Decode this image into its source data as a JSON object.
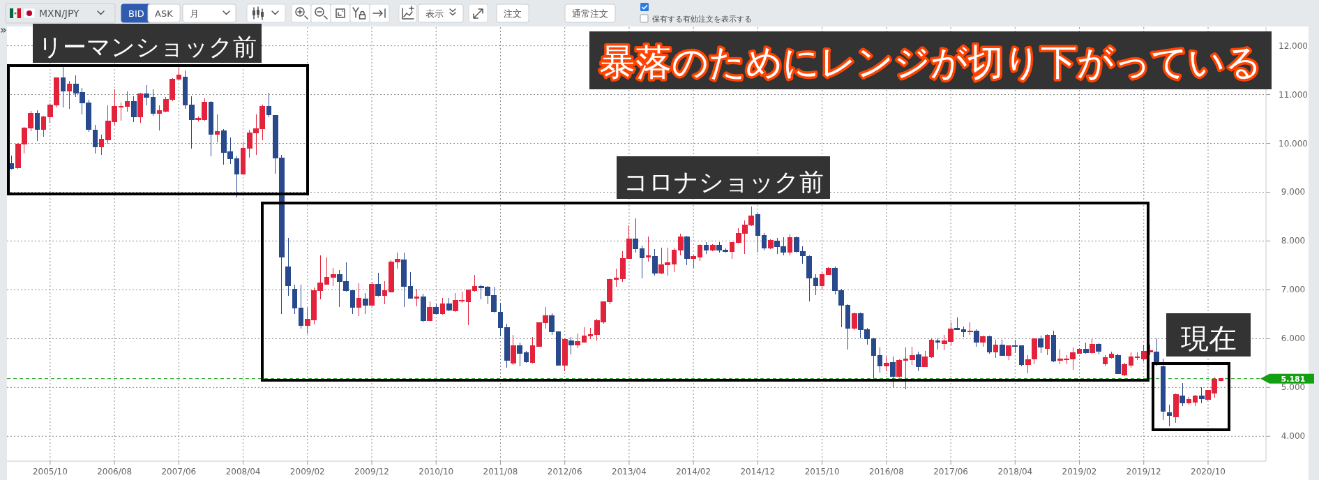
{
  "chart_data": {
    "type": "candlestick",
    "title": "暴落のためにレンジが切り下がっている",
    "subtitle": "MXN/JPY",
    "x": [
      "2005-04",
      "2005-05",
      "2005-06",
      "2005-07",
      "2005-08",
      "2005-09",
      "2005-10",
      "2005-11",
      "2005-12",
      "2006-01",
      "2006-02",
      "2006-03",
      "2006-04",
      "2006-05",
      "2006-06",
      "2006-07",
      "2006-08",
      "2006-09",
      "2006-10",
      "2006-11",
      "2006-12",
      "2007-01",
      "2007-02",
      "2007-03",
      "2007-04",
      "2007-05",
      "2007-06",
      "2007-07",
      "2007-08",
      "2007-09",
      "2007-10",
      "2007-11",
      "2007-12",
      "2008-01",
      "2008-02",
      "2008-03",
      "2008-04",
      "2008-05",
      "2008-06",
      "2008-07",
      "2008-08",
      "2008-09",
      "2008-10",
      "2008-11",
      "2008-12",
      "2009-01",
      "2009-02",
      "2009-03",
      "2009-04",
      "2009-05",
      "2009-06",
      "2009-07",
      "2009-08",
      "2009-09",
      "2009-10",
      "2009-11",
      "2009-12",
      "2010-01",
      "2010-02",
      "2010-03",
      "2010-04",
      "2010-05",
      "2010-06",
      "2010-07",
      "2010-08",
      "2010-09",
      "2010-10",
      "2010-11",
      "2010-12",
      "2011-01",
      "2011-02",
      "2011-03",
      "2011-04",
      "2011-05",
      "2011-06",
      "2011-07",
      "2011-08",
      "2011-09",
      "2011-10",
      "2011-11",
      "2011-12",
      "2012-01",
      "2012-02",
      "2012-03",
      "2012-04",
      "2012-05",
      "2012-06",
      "2012-07",
      "2012-08",
      "2012-09",
      "2012-10",
      "2012-11",
      "2012-12",
      "2013-01",
      "2013-02",
      "2013-03",
      "2013-04",
      "2013-05",
      "2013-06",
      "2013-07",
      "2013-08",
      "2013-09",
      "2013-10",
      "2013-11",
      "2013-12",
      "2014-01",
      "2014-02",
      "2014-03",
      "2014-04",
      "2014-05",
      "2014-06",
      "2014-07",
      "2014-08",
      "2014-09",
      "2014-10",
      "2014-11",
      "2014-12",
      "2015-01",
      "2015-02",
      "2015-03",
      "2015-04",
      "2015-05",
      "2015-06",
      "2015-07",
      "2015-08",
      "2015-09",
      "2015-10",
      "2015-11",
      "2015-12",
      "2016-01",
      "2016-02",
      "2016-03",
      "2016-04",
      "2016-05",
      "2016-06",
      "2016-07",
      "2016-08",
      "2016-09",
      "2016-10",
      "2016-11",
      "2016-12",
      "2017-01",
      "2017-02",
      "2017-03",
      "2017-04",
      "2017-05",
      "2017-06",
      "2017-07",
      "2017-08",
      "2017-09",
      "2017-10",
      "2017-11",
      "2017-12",
      "2018-01",
      "2018-02",
      "2018-03",
      "2018-04",
      "2018-05",
      "2018-06",
      "2018-07",
      "2018-08",
      "2018-09",
      "2018-10",
      "2018-11",
      "2018-12",
      "2019-01",
      "2019-02",
      "2019-03",
      "2019-04",
      "2019-05",
      "2019-06",
      "2019-07",
      "2019-08",
      "2019-09",
      "2019-10",
      "2019-11",
      "2019-12",
      "2020-01",
      "2020-02",
      "2020-03",
      "2020-04",
      "2020-05",
      "2020-06",
      "2020-07",
      "2020-08",
      "2020-09",
      "2020-10",
      "2020-11",
      "2020-12"
    ],
    "ohlc": [
      [
        9.58,
        9.75,
        9.46,
        9.49
      ],
      [
        9.5,
        10.0,
        9.48,
        9.98
      ],
      [
        9.99,
        10.34,
        9.8,
        10.32
      ],
      [
        10.32,
        10.67,
        10.25,
        10.62
      ],
      [
        10.61,
        10.68,
        10.05,
        10.29
      ],
      [
        10.29,
        10.57,
        10.14,
        10.54
      ],
      [
        10.54,
        10.82,
        10.42,
        10.78
      ],
      [
        10.79,
        11.35,
        10.73,
        11.34
      ],
      [
        11.35,
        11.57,
        10.73,
        11.07
      ],
      [
        11.07,
        11.28,
        10.71,
        11.21
      ],
      [
        11.21,
        11.4,
        10.95,
        11.03
      ],
      [
        11.04,
        11.13,
        10.59,
        10.83
      ],
      [
        10.83,
        10.9,
        10.24,
        10.29
      ],
      [
        10.27,
        10.38,
        9.8,
        9.93
      ],
      [
        9.93,
        10.18,
        9.77,
        10.09
      ],
      [
        10.07,
        10.78,
        9.99,
        10.46
      ],
      [
        10.44,
        11.11,
        10.38,
        10.76
      ],
      [
        10.74,
        10.84,
        10.46,
        10.76
      ],
      [
        10.76,
        11.07,
        10.65,
        10.86
      ],
      [
        10.86,
        10.96,
        10.44,
        10.54
      ],
      [
        10.54,
        11.04,
        10.42,
        11.02
      ],
      [
        11.02,
        11.2,
        10.78,
        10.95
      ],
      [
        10.95,
        11.11,
        10.56,
        10.62
      ],
      [
        10.62,
        10.78,
        10.27,
        10.67
      ],
      [
        10.66,
        10.95,
        10.63,
        10.9
      ],
      [
        10.9,
        11.34,
        10.87,
        11.32
      ],
      [
        11.32,
        11.56,
        11.3,
        11.4
      ],
      [
        11.36,
        11.49,
        10.71,
        10.79
      ],
      [
        10.79,
        10.96,
        9.9,
        10.49
      ],
      [
        10.48,
        10.55,
        10.45,
        10.51
      ],
      [
        10.49,
        10.92,
        10.46,
        10.84
      ],
      [
        10.84,
        10.87,
        9.73,
        10.18
      ],
      [
        10.18,
        10.59,
        10.02,
        10.24
      ],
      [
        10.26,
        10.3,
        9.57,
        9.82
      ],
      [
        9.83,
        10.12,
        9.58,
        9.68
      ],
      [
        9.68,
        9.74,
        8.89,
        9.37
      ],
      [
        9.37,
        10.03,
        9.36,
        9.9
      ],
      [
        9.9,
        10.28,
        9.71,
        10.22
      ],
      [
        10.22,
        10.6,
        9.77,
        10.3
      ],
      [
        10.3,
        10.8,
        10.06,
        10.76
      ],
      [
        10.76,
        11.04,
        10.54,
        10.58
      ],
      [
        10.57,
        10.58,
        9.38,
        9.7
      ],
      [
        9.7,
        9.76,
        6.5,
        7.67
      ],
      [
        7.47,
        8.06,
        6.88,
        7.09
      ],
      [
        7.01,
        7.11,
        6.51,
        6.63
      ],
      [
        6.63,
        7.11,
        6.21,
        6.27
      ],
      [
        6.27,
        6.64,
        6.1,
        6.4
      ],
      [
        6.39,
        7.05,
        6.29,
        6.99
      ],
      [
        6.99,
        7.7,
        6.81,
        7.14
      ],
      [
        7.12,
        7.67,
        7.1,
        7.25
      ],
      [
        7.25,
        7.45,
        7.08,
        7.31
      ],
      [
        7.31,
        7.4,
        6.65,
        7.17
      ],
      [
        7.17,
        7.57,
        6.96,
        6.98
      ],
      [
        6.98,
        6.99,
        6.51,
        6.64
      ],
      [
        6.64,
        7.14,
        6.46,
        6.83
      ],
      [
        6.82,
        6.94,
        6.51,
        6.69
      ],
      [
        6.69,
        7.16,
        6.67,
        7.11
      ],
      [
        7.11,
        7.35,
        6.86,
        6.89
      ],
      [
        6.88,
        7.18,
        6.71,
        6.98
      ],
      [
        6.96,
        7.61,
        6.95,
        7.57
      ],
      [
        7.57,
        7.77,
        7.44,
        7.63
      ],
      [
        7.61,
        7.76,
        6.65,
        7.07
      ],
      [
        7.07,
        7.36,
        6.82,
        6.83
      ],
      [
        6.83,
        7.02,
        6.67,
        6.86
      ],
      [
        6.85,
        6.92,
        6.34,
        6.37
      ],
      [
        6.37,
        6.76,
        6.36,
        6.64
      ],
      [
        6.64,
        6.71,
        6.49,
        6.51
      ],
      [
        6.51,
        6.83,
        6.49,
        6.71
      ],
      [
        6.71,
        6.83,
        6.57,
        6.58
      ],
      [
        6.57,
        6.94,
        6.55,
        6.78
      ],
      [
        6.77,
        6.96,
        6.73,
        6.78
      ],
      [
        6.76,
        7.01,
        6.27,
        7.0
      ],
      [
        6.98,
        7.3,
        6.96,
        7.07
      ],
      [
        7.07,
        7.11,
        6.81,
        7.04
      ],
      [
        7.05,
        7.08,
        6.7,
        6.89
      ],
      [
        6.89,
        7.07,
        6.53,
        6.55
      ],
      [
        6.54,
        6.73,
        6.05,
        6.23
      ],
      [
        6.23,
        6.3,
        5.4,
        5.55
      ],
      [
        5.5,
        6.08,
        5.46,
        5.86
      ],
      [
        5.86,
        5.92,
        5.43,
        5.7
      ],
      [
        5.71,
        5.75,
        5.51,
        5.52
      ],
      [
        5.51,
        6.04,
        5.49,
        5.86
      ],
      [
        5.84,
        6.34,
        5.83,
        6.33
      ],
      [
        6.32,
        6.65,
        6.2,
        6.47
      ],
      [
        6.47,
        6.52,
        6.08,
        6.14
      ],
      [
        6.14,
        6.15,
        5.45,
        5.46
      ],
      [
        5.46,
        6.0,
        5.34,
        5.98
      ],
      [
        5.96,
        6.04,
        5.68,
        5.87
      ],
      [
        5.87,
        6.11,
        5.81,
        5.94
      ],
      [
        5.93,
        6.23,
        5.92,
        6.06
      ],
      [
        6.05,
        6.22,
        5.99,
        6.09
      ],
      [
        6.09,
        6.4,
        5.96,
        6.37
      ],
      [
        6.34,
        6.77,
        6.31,
        6.76
      ],
      [
        6.76,
        7.23,
        6.71,
        7.22
      ],
      [
        7.22,
        7.44,
        7.07,
        7.24
      ],
      [
        7.23,
        7.79,
        7.16,
        7.64
      ],
      [
        7.64,
        8.32,
        7.63,
        8.04
      ],
      [
        8.04,
        8.46,
        7.76,
        7.84
      ],
      [
        7.84,
        7.91,
        7.23,
        7.66
      ],
      [
        7.67,
        8.09,
        7.58,
        7.7
      ],
      [
        7.69,
        7.83,
        7.29,
        7.34
      ],
      [
        7.34,
        7.87,
        7.32,
        7.51
      ],
      [
        7.51,
        7.86,
        7.29,
        7.56
      ],
      [
        7.53,
        7.85,
        7.36,
        7.82
      ],
      [
        7.82,
        8.15,
        7.7,
        8.09
      ],
      [
        8.09,
        8.1,
        7.51,
        7.64
      ],
      [
        7.64,
        7.7,
        7.45,
        7.68
      ],
      [
        7.67,
        7.93,
        7.59,
        7.91
      ],
      [
        7.91,
        7.98,
        7.74,
        7.82
      ],
      [
        7.82,
        7.94,
        7.79,
        7.92
      ],
      [
        7.92,
        7.98,
        7.77,
        7.82
      ],
      [
        7.82,
        7.85,
        7.76,
        7.78
      ],
      [
        7.78,
        7.98,
        7.63,
        7.97
      ],
      [
        7.97,
        8.27,
        7.95,
        8.16
      ],
      [
        8.16,
        8.42,
        7.73,
        8.33
      ],
      [
        8.33,
        8.71,
        8.3,
        8.52
      ],
      [
        8.54,
        8.56,
        7.77,
        8.12
      ],
      [
        8.12,
        8.16,
        7.81,
        7.85
      ],
      [
        7.85,
        8.03,
        7.83,
        8.01
      ],
      [
        8.0,
        8.06,
        7.73,
        7.88
      ],
      [
        7.88,
        8.08,
        7.7,
        7.77
      ],
      [
        7.77,
        8.14,
        7.7,
        8.07
      ],
      [
        8.07,
        8.09,
        7.76,
        7.78
      ],
      [
        7.79,
        7.89,
        7.54,
        7.7
      ],
      [
        7.69,
        7.71,
        6.76,
        7.24
      ],
      [
        7.24,
        7.32,
        6.89,
        7.09
      ],
      [
        7.09,
        7.36,
        6.99,
        7.32
      ],
      [
        7.32,
        7.47,
        7.3,
        7.44
      ],
      [
        7.44,
        7.48,
        6.9,
        6.99
      ],
      [
        6.99,
        7.02,
        6.23,
        6.68
      ],
      [
        6.69,
        6.7,
        5.77,
        6.21
      ],
      [
        6.21,
        6.53,
        6.18,
        6.52
      ],
      [
        6.52,
        6.53,
        6.0,
        6.18
      ],
      [
        6.19,
        6.22,
        5.87,
        6.0
      ],
      [
        6.0,
        6.02,
        5.19,
        5.65
      ],
      [
        5.65,
        5.82,
        5.31,
        5.44
      ],
      [
        5.44,
        5.64,
        5.33,
        5.5
      ],
      [
        5.51,
        5.64,
        5.01,
        5.22
      ],
      [
        5.22,
        5.58,
        5.21,
        5.56
      ],
      [
        5.56,
        5.82,
        4.96,
        5.58
      ],
      [
        5.57,
        5.84,
        5.46,
        5.65
      ],
      [
        5.67,
        5.73,
        5.34,
        5.42
      ],
      [
        5.42,
        5.75,
        5.42,
        5.62
      ],
      [
        5.62,
        6.0,
        5.61,
        5.97
      ],
      [
        5.96,
        6.0,
        5.78,
        5.93
      ],
      [
        5.9,
        6.08,
        5.76,
        5.96
      ],
      [
        5.94,
        6.33,
        5.86,
        6.2
      ],
      [
        6.21,
        6.43,
        6.17,
        6.18
      ],
      [
        6.19,
        6.25,
        6.04,
        6.14
      ],
      [
        6.14,
        6.34,
        6.08,
        6.16
      ],
      [
        6.16,
        6.19,
        5.84,
        5.93
      ],
      [
        5.93,
        6.06,
        5.83,
        6.04
      ],
      [
        6.04,
        6.06,
        5.69,
        5.72
      ],
      [
        5.72,
        5.97,
        5.61,
        5.87
      ],
      [
        5.87,
        5.98,
        5.65,
        5.66
      ],
      [
        5.66,
        5.86,
        5.56,
        5.85
      ],
      [
        5.86,
        5.97,
        5.7,
        5.84
      ],
      [
        5.85,
        5.85,
        5.43,
        5.47
      ],
      [
        5.47,
        5.66,
        5.29,
        5.57
      ],
      [
        5.58,
        6.01,
        5.48,
        6.0
      ],
      [
        6.0,
        6.06,
        5.7,
        5.82
      ],
      [
        5.8,
        6.09,
        5.66,
        6.07
      ],
      [
        6.07,
        6.16,
        5.52,
        5.54
      ],
      [
        5.56,
        5.78,
        5.47,
        5.58
      ],
      [
        5.57,
        5.66,
        5.47,
        5.59
      ],
      [
        5.59,
        5.82,
        5.36,
        5.71
      ],
      [
        5.7,
        5.81,
        5.69,
        5.78
      ],
      [
        5.78,
        5.92,
        5.69,
        5.71
      ],
      [
        5.71,
        5.99,
        5.69,
        5.89
      ],
      [
        5.89,
        5.9,
        5.67,
        5.74
      ],
      [
        5.49,
        5.66,
        5.44,
        5.61
      ],
      [
        5.61,
        5.73,
        5.59,
        5.69
      ],
      [
        5.65,
        5.69,
        5.27,
        5.29
      ],
      [
        5.25,
        5.5,
        5.24,
        5.47
      ],
      [
        5.46,
        5.72,
        5.41,
        5.63
      ],
      [
        5.61,
        5.72,
        5.56,
        5.63
      ],
      [
        5.58,
        5.88,
        5.53,
        5.74
      ],
      [
        5.73,
        5.88,
        5.66,
        5.75
      ],
      [
        5.72,
        6.0,
        5.44,
        5.53
      ],
      [
        5.43,
        5.59,
        4.33,
        4.51
      ],
      [
        4.49,
        4.65,
        4.21,
        4.43
      ],
      [
        4.4,
        4.87,
        4.28,
        4.86
      ],
      [
        4.83,
        5.09,
        4.62,
        4.68
      ],
      [
        4.68,
        4.81,
        4.65,
        4.76
      ],
      [
        4.7,
        4.85,
        4.62,
        4.83
      ],
      [
        4.83,
        5.0,
        4.67,
        4.77
      ],
      [
        4.76,
        4.95,
        4.73,
        4.94
      ],
      [
        4.89,
        5.21,
        4.79,
        5.17
      ],
      [
        5.14,
        5.19,
        5.12,
        5.18
      ]
    ],
    "colors": [
      "#284a8c",
      "#e3233b",
      "#e3233b",
      "#e3233b",
      "#284a8c",
      "#e3233b",
      "#e3233b",
      "#e3233b",
      "#284a8c",
      "#e3233b",
      "#284a8c",
      "#284a8c",
      "#284a8c",
      "#284a8c",
      "#e3233b",
      "#e3233b",
      "#e3233b",
      "#e3233b",
      "#e3233b",
      "#284a8c",
      "#e3233b",
      "#284a8c",
      "#284a8c",
      "#e3233b",
      "#e3233b",
      "#e3233b",
      "#e3233b",
      "#284a8c",
      "#284a8c",
      "#e3233b",
      "#e3233b",
      "#284a8c",
      "#e3233b",
      "#284a8c",
      "#284a8c",
      "#284a8c",
      "#e3233b",
      "#e3233b",
      "#e3233b",
      "#e3233b",
      "#284a8c",
      "#284a8c",
      "#284a8c",
      "#284a8c",
      "#284a8c",
      "#284a8c",
      "#e3233b",
      "#e3233b",
      "#e3233b",
      "#e3233b",
      "#e3233b",
      "#284a8c",
      "#284a8c",
      "#284a8c",
      "#e3233b",
      "#284a8c",
      "#e3233b",
      "#284a8c",
      "#e3233b",
      "#e3233b",
      "#e3233b",
      "#284a8c",
      "#284a8c",
      "#e3233b",
      "#284a8c",
      "#e3233b",
      "#284a8c",
      "#e3233b",
      "#284a8c",
      "#e3233b",
      "#e3233b",
      "#e3233b",
      "#e3233b",
      "#284a8c",
      "#284a8c",
      "#284a8c",
      "#284a8c",
      "#284a8c",
      "#e3233b",
      "#284a8c",
      "#284a8c",
      "#e3233b",
      "#e3233b",
      "#e3233b",
      "#284a8c",
      "#284a8c",
      "#e3233b",
      "#284a8c",
      "#e3233b",
      "#e3233b",
      "#e3233b",
      "#e3233b",
      "#e3233b",
      "#e3233b",
      "#e3233b",
      "#e3233b",
      "#e3233b",
      "#284a8c",
      "#284a8c",
      "#e3233b",
      "#284a8c",
      "#e3233b",
      "#e3233b",
      "#e3233b",
      "#e3233b",
      "#284a8c",
      "#e3233b",
      "#e3233b",
      "#284a8c",
      "#e3233b",
      "#284a8c",
      "#284a8c",
      "#e3233b",
      "#e3233b",
      "#e3233b",
      "#e3233b",
      "#284a8c",
      "#284a8c",
      "#e3233b",
      "#284a8c",
      "#284a8c",
      "#e3233b",
      "#284a8c",
      "#284a8c",
      "#284a8c",
      "#284a8c",
      "#e3233b",
      "#e3233b",
      "#284a8c",
      "#284a8c",
      "#284a8c",
      "#e3233b",
      "#284a8c",
      "#284a8c",
      "#284a8c",
      "#284a8c",
      "#e3233b",
      "#284a8c",
      "#e3233b",
      "#e3233b",
      "#e3233b",
      "#284a8c",
      "#e3233b",
      "#e3233b",
      "#284a8c",
      "#e3233b",
      "#e3233b",
      "#284a8c",
      "#284a8c",
      "#e3233b",
      "#284a8c",
      "#e3233b",
      "#284a8c",
      "#e3233b",
      "#284a8c",
      "#e3233b",
      "#284a8c",
      "#284a8c",
      "#e3233b",
      "#e3233b",
      "#284a8c",
      "#e3233b",
      "#284a8c",
      "#e3233b",
      "#e3233b",
      "#e3233b",
      "#e3233b",
      "#284a8c",
      "#e3233b",
      "#284a8c",
      "#e3233b",
      "#e3233b",
      "#284a8c",
      "#e3233b",
      "#e3233b",
      "#e3233b",
      "#e3233b",
      "#e3233b",
      "#284a8c",
      "#284a8c",
      "#284a8c",
      "#e3233b",
      "#284a8c",
      "#e3233b",
      "#e3233b",
      "#284a8c",
      "#e3233b",
      "#e3233b",
      "#e3233b"
    ],
    "xlim": [
      "2005-03-10",
      "2021-07-01"
    ],
    "ylim": [
      3.49,
      12.38
    ],
    "xticks": [
      {
        "value": "2005-10",
        "label": "2005/10"
      },
      {
        "value": "2006-08",
        "label": "2006/08"
      },
      {
        "value": "2007-06",
        "label": "2007/06"
      },
      {
        "value": "2008-04",
        "label": "2008/04"
      },
      {
        "value": "2009-02",
        "label": "2009/02"
      },
      {
        "value": "2009-12",
        "label": "2009/12"
      },
      {
        "value": "2010-10",
        "label": "2010/10"
      },
      {
        "value": "2011-08",
        "label": "2011/08"
      },
      {
        "value": "2012-06",
        "label": "2012/06"
      },
      {
        "value": "2013-04",
        "label": "2013/04"
      },
      {
        "value": "2014-02",
        "label": "2014/02"
      },
      {
        "value": "2014-12",
        "label": "2014/12"
      },
      {
        "value": "2015-10",
        "label": "2015/10"
      },
      {
        "value": "2016-08",
        "label": "2016/08"
      },
      {
        "value": "2017-06",
        "label": "2017/06"
      },
      {
        "value": "2018-04",
        "label": "2018/04"
      },
      {
        "value": "2019-02",
        "label": "2019/02"
      },
      {
        "value": "2019-12",
        "label": "2019/12"
      },
      {
        "value": "2020-10",
        "label": "2020/10"
      }
    ],
    "yticks": [
      {
        "value": 4,
        "label": "4.000"
      },
      {
        "value": 5,
        "label": "5.000"
      },
      {
        "value": 6,
        "label": "6.000"
      },
      {
        "value": 7,
        "label": "7.000"
      },
      {
        "value": 8,
        "label": "8.000"
      },
      {
        "value": 9,
        "label": "9.000"
      },
      {
        "value": 10,
        "label": "10.000"
      },
      {
        "value": 11,
        "label": "11.000"
      },
      {
        "value": 12,
        "label": "12.000"
      }
    ],
    "grid": true,
    "ref_lines": [
      {
        "axis": "y",
        "value": 5.181,
        "label": "5.181",
        "color": "#12a012",
        "line_style": "dashed"
      }
    ],
    "annotations": [
      "BID",
      "ASK",
      "月",
      "表示",
      "注文",
      "通常注文",
      "保有する有効注文を表示する",
      "リーマンショック前",
      "コロナショック前",
      "現在"
    ]
  }
}
